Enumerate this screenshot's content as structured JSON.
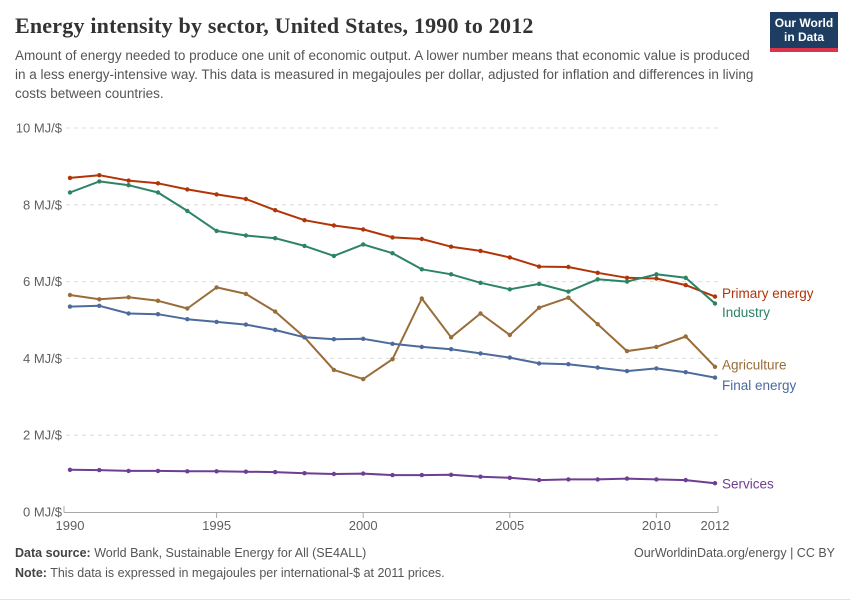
{
  "header": {
    "title": "Energy intensity by sector, United States, 1990 to 2012",
    "subtitle": "Amount of energy needed to produce one unit of economic output. A lower number means that economic value is produced in a less energy-intensive way. This data is measured in megajoules per dollar, adjusted for inflation and differences in living costs between countries.",
    "logo": {
      "line1": "Our World",
      "line2": "in Data"
    }
  },
  "footer": {
    "datasource_label": "Data source:",
    "datasource_text": " World Bank, Sustainable Energy for All (SE4ALL)",
    "note_label": "Note:",
    "note_text": " This data is expressed in megajoules per international-$ at 2011 prices.",
    "link_text": "OurWorldinData.org/energy | CC BY"
  },
  "chart_data": {
    "type": "line",
    "title": "Energy intensity by sector, United States, 1990 to 2012",
    "unit": "MJ/$",
    "xlim": [
      1990,
      2012
    ],
    "ylim": [
      0,
      10
    ],
    "grid": "dashed-horizontal",
    "legend_position": "right-end-of-line",
    "x": [
      1990,
      1991,
      1992,
      1993,
      1994,
      1995,
      1996,
      1997,
      1998,
      1999,
      2000,
      2001,
      2002,
      2003,
      2004,
      2005,
      2006,
      2007,
      2008,
      2009,
      2010,
      2011,
      2012
    ],
    "series": [
      {
        "name": "Primary energy",
        "color": "#b13507",
        "values": [
          8.7,
          8.77,
          8.63,
          8.56,
          8.4,
          8.27,
          8.15,
          7.86,
          7.6,
          7.46,
          7.36,
          7.15,
          7.11,
          6.91,
          6.8,
          6.63,
          6.39,
          6.38,
          6.23,
          6.1,
          6.08,
          5.91,
          5.61
        ]
      },
      {
        "name": "Industry",
        "color": "#2c8465",
        "values": [
          8.32,
          8.61,
          8.51,
          8.32,
          7.84,
          7.32,
          7.2,
          7.13,
          6.93,
          6.67,
          6.97,
          6.74,
          6.32,
          6.19,
          5.97,
          5.8,
          5.94,
          5.74,
          6.06,
          6.0,
          6.19,
          6.1,
          5.43
        ]
      },
      {
        "name": "Agriculture",
        "color": "#996d39",
        "values": [
          5.65,
          5.54,
          5.59,
          5.5,
          5.3,
          5.85,
          5.68,
          5.22,
          4.55,
          3.7,
          3.46,
          3.98,
          5.56,
          4.55,
          5.17,
          4.61,
          5.32,
          5.58,
          4.89,
          4.19,
          4.3,
          4.57,
          3.78
        ]
      },
      {
        "name": "Final energy",
        "color": "#4c6a9c",
        "values": [
          5.35,
          5.37,
          5.17,
          5.15,
          5.02,
          4.95,
          4.88,
          4.74,
          4.55,
          4.5,
          4.51,
          4.38,
          4.3,
          4.24,
          4.13,
          4.02,
          3.87,
          3.85,
          3.76,
          3.67,
          3.74,
          3.64,
          3.5
        ]
      },
      {
        "name": "Services",
        "color": "#6d3e91",
        "values": [
          1.1,
          1.09,
          1.07,
          1.07,
          1.06,
          1.06,
          1.05,
          1.04,
          1.01,
          0.99,
          1.0,
          0.96,
          0.96,
          0.97,
          0.92,
          0.89,
          0.83,
          0.85,
          0.85,
          0.87,
          0.85,
          0.83,
          0.75
        ]
      }
    ],
    "y_ticks": [
      {
        "value": 0,
        "label": "0 MJ/$"
      },
      {
        "value": 2,
        "label": "2 MJ/$"
      },
      {
        "value": 4,
        "label": "4 MJ/$"
      },
      {
        "value": 6,
        "label": "6 MJ/$"
      },
      {
        "value": 8,
        "label": "8 MJ/$"
      },
      {
        "value": 10,
        "label": "10 MJ/$"
      }
    ],
    "x_ticks": [
      {
        "value": 1990,
        "label": "1990"
      },
      {
        "value": 1995,
        "label": "1995"
      },
      {
        "value": 2000,
        "label": "2000"
      },
      {
        "value": 2005,
        "label": "2005"
      },
      {
        "value": 2010,
        "label": "2010"
      },
      {
        "value": 2012,
        "label": "2012"
      }
    ]
  }
}
